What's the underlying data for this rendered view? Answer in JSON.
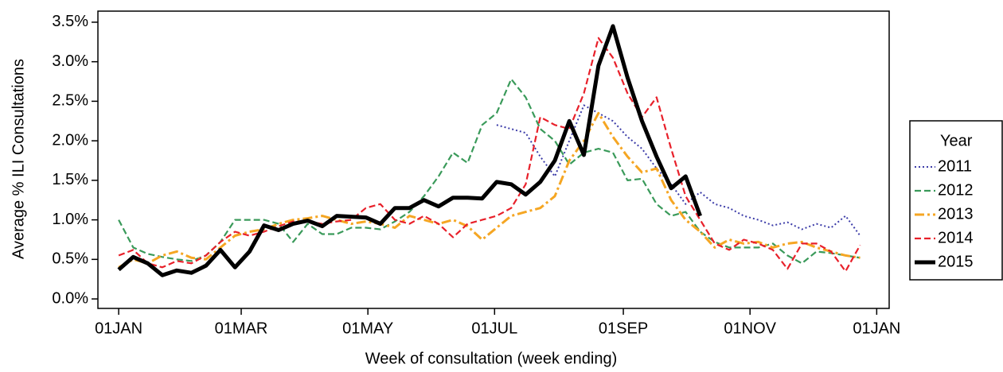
{
  "chart_data": {
    "type": "line",
    "xlabel": "Week of consultation (week ending)",
    "ylabel": "Average % ILI Consultations",
    "legend_title": "Year",
    "legend": "right",
    "x": [
      0,
      7,
      14,
      21,
      28,
      35,
      42,
      49,
      56,
      63,
      70,
      77,
      84,
      91,
      98,
      105,
      112,
      119,
      126,
      133,
      140,
      147,
      154,
      161,
      168,
      175,
      182,
      189,
      196,
      203,
      210,
      217,
      224,
      231,
      238,
      245,
      252,
      259,
      266,
      273,
      280,
      287,
      294,
      301,
      308,
      315,
      322,
      329,
      336,
      343,
      350,
      357
    ],
    "xlim": [
      -10,
      371
    ],
    "xticks": [
      {
        "value": 0,
        "label": "01JAN"
      },
      {
        "value": 59,
        "label": "01MAR"
      },
      {
        "value": 120,
        "label": "01MAY"
      },
      {
        "value": 181,
        "label": "01JUL"
      },
      {
        "value": 243,
        "label": "01SEP"
      },
      {
        "value": 304,
        "label": "01NOV"
      },
      {
        "value": 365,
        "label": "01JAN"
      }
    ],
    "ylim": [
      -0.12,
      3.64
    ],
    "yticks": [
      {
        "value": 0,
        "label": "0.0%"
      },
      {
        "value": 0.5,
        "label": "0.5%"
      },
      {
        "value": 1,
        "label": "1.0%"
      },
      {
        "value": 1.5,
        "label": "1.5%"
      },
      {
        "value": 2,
        "label": "2.0%"
      },
      {
        "value": 2.5,
        "label": "2.5%"
      },
      {
        "value": 3,
        "label": "3.0%"
      },
      {
        "value": 3.5,
        "label": "3.5%"
      }
    ],
    "series": [
      {
        "name": "2011",
        "color": "#3c3ca8",
        "style": "dotted",
        "values": [
          null,
          null,
          null,
          null,
          null,
          null,
          null,
          null,
          null,
          null,
          null,
          null,
          null,
          null,
          null,
          null,
          null,
          null,
          null,
          null,
          null,
          null,
          null,
          null,
          null,
          null,
          2.2,
          2.15,
          2.1,
          1.8,
          1.55,
          2.0,
          2.45,
          2.35,
          2.25,
          2.05,
          1.9,
          1.65,
          1.45,
          1.2,
          1.35,
          1.2,
          1.15,
          1.05,
          1.0,
          0.93,
          0.97,
          0.88,
          0.95,
          0.9,
          1.05,
          0.8
        ]
      },
      {
        "name": "2012",
        "color": "#3a9a5a",
        "style": "dashed",
        "values": [
          1.0,
          0.65,
          0.57,
          0.53,
          0.5,
          0.48,
          0.55,
          0.72,
          1.0,
          1.0,
          1.0,
          0.95,
          0.72,
          0.95,
          0.82,
          0.82,
          0.9,
          0.9,
          0.88,
          0.98,
          1.1,
          1.3,
          1.55,
          1.85,
          1.72,
          2.2,
          2.35,
          2.78,
          2.55,
          2.15,
          2.0,
          1.7,
          1.85,
          1.9,
          1.85,
          1.5,
          1.52,
          1.2,
          1.05,
          1.1,
          0.85,
          0.72,
          0.65,
          0.65,
          0.65,
          0.7,
          0.55,
          0.45,
          0.6,
          0.58,
          0.55,
          0.52
        ]
      },
      {
        "name": "2013",
        "color": "#f5a623",
        "style": "dashdot",
        "values": [
          0.4,
          0.5,
          0.45,
          0.55,
          0.6,
          0.52,
          0.5,
          0.65,
          0.8,
          0.85,
          0.88,
          0.95,
          1.0,
          1.02,
          1.05,
          1.0,
          0.95,
          0.98,
          0.95,
          0.9,
          1.05,
          1.0,
          0.95,
          1.0,
          0.92,
          0.75,
          0.9,
          1.05,
          1.1,
          1.15,
          1.3,
          1.75,
          2.0,
          2.35,
          2.05,
          1.8,
          1.6,
          1.65,
          1.25,
          1.0,
          0.85,
          0.65,
          0.75,
          0.7,
          0.72,
          0.65,
          0.7,
          0.72,
          0.65,
          0.6,
          0.55,
          0.52
        ]
      },
      {
        "name": "2014",
        "color": "#e8202a",
        "style": "dashed",
        "values": [
          0.55,
          0.62,
          0.45,
          0.4,
          0.48,
          0.45,
          0.55,
          0.72,
          0.85,
          0.8,
          0.85,
          0.92,
          0.98,
          0.98,
          0.95,
          0.98,
          1.0,
          1.15,
          1.2,
          1.0,
          0.95,
          1.05,
          0.95,
          0.78,
          0.95,
          1.0,
          1.05,
          1.15,
          1.45,
          2.3,
          2.2,
          2.15,
          2.6,
          3.3,
          3.05,
          2.6,
          2.3,
          2.55,
          1.9,
          1.3,
          1.0,
          0.7,
          0.62,
          0.75,
          0.7,
          0.62,
          0.38,
          0.7,
          0.7,
          0.6,
          0.35,
          0.68
        ]
      },
      {
        "name": "2015",
        "color": "#000000",
        "style": "solid",
        "values": [
          0.37,
          0.53,
          0.45,
          0.3,
          0.36,
          0.33,
          0.42,
          0.62,
          0.4,
          0.6,
          0.93,
          0.87,
          0.95,
          0.99,
          0.92,
          1.05,
          1.04,
          1.03,
          0.95,
          1.15,
          1.15,
          1.25,
          1.17,
          1.28,
          1.28,
          1.27,
          1.48,
          1.45,
          1.32,
          1.48,
          1.75,
          2.25,
          1.82,
          2.95,
          3.45,
          2.8,
          2.25,
          1.8,
          1.4,
          1.55,
          1.05,
          null,
          null,
          null,
          null,
          null,
          null,
          null,
          null,
          null,
          null,
          null
        ]
      }
    ]
  }
}
